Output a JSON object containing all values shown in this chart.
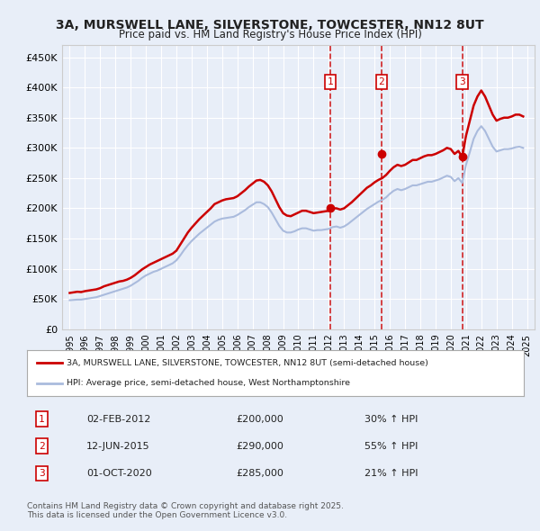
{
  "title_line1": "3A, MURSWELL LANE, SILVERSTONE, TOWCESTER, NN12 8UT",
  "title_line2": "Price paid vs. HM Land Registry's House Price Index (HPI)",
  "bg_color": "#e8eef8",
  "plot_bg_color": "#e8eef8",
  "grid_color": "#ffffff",
  "red_line_color": "#cc0000",
  "blue_line_color": "#aabbdd",
  "dashed_line_color": "#cc0000",
  "legend_box_color": "#ffffff",
  "ylim_min": 0,
  "ylim_max": 470000,
  "yticks": [
    0,
    50000,
    100000,
    150000,
    200000,
    250000,
    300000,
    350000,
    400000,
    450000
  ],
  "ytick_labels": [
    "£0",
    "£50K",
    "£100K",
    "£150K",
    "£200K",
    "£250K",
    "£300K",
    "£350K",
    "£400K",
    "£450K"
  ],
  "xlim_min": 1994.5,
  "xlim_max": 2025.5,
  "xticks": [
    1995,
    1996,
    1997,
    1998,
    1999,
    2000,
    2001,
    2002,
    2003,
    2004,
    2005,
    2006,
    2007,
    2008,
    2009,
    2010,
    2011,
    2012,
    2013,
    2014,
    2015,
    2016,
    2017,
    2018,
    2019,
    2020,
    2021,
    2022,
    2023,
    2024,
    2025
  ],
  "sale_dates": [
    2012.09,
    2015.45,
    2020.75
  ],
  "sale_prices": [
    200000,
    290000,
    285000
  ],
  "sale_labels": [
    "1",
    "2",
    "3"
  ],
  "sale_label_info": [
    {
      "num": "1",
      "date": "02-FEB-2012",
      "price": "£200,000",
      "hpi": "30% ↑ HPI"
    },
    {
      "num": "2",
      "date": "12-JUN-2015",
      "price": "£290,000",
      "hpi": "55% ↑ HPI"
    },
    {
      "num": "3",
      "date": "01-OCT-2020",
      "price": "£285,000",
      "hpi": "21% ↑ HPI"
    }
  ],
  "legend_line1": "3A, MURSWELL LANE, SILVERSTONE, TOWCESTER, NN12 8UT (semi-detached house)",
  "legend_line2": "HPI: Average price, semi-detached house, West Northamptonshire",
  "footnote": "Contains HM Land Registry data © Crown copyright and database right 2025.\nThis data is licensed under the Open Government Licence v3.0.",
  "red_hpi_data": {
    "years": [
      1995.0,
      1995.25,
      1995.5,
      1995.75,
      1996.0,
      1996.25,
      1996.5,
      1996.75,
      1997.0,
      1997.25,
      1997.5,
      1997.75,
      1998.0,
      1998.25,
      1998.5,
      1998.75,
      1999.0,
      1999.25,
      1999.5,
      1999.75,
      2000.0,
      2000.25,
      2000.5,
      2000.75,
      2001.0,
      2001.25,
      2001.5,
      2001.75,
      2002.0,
      2002.25,
      2002.5,
      2002.75,
      2003.0,
      2003.25,
      2003.5,
      2003.75,
      2004.0,
      2004.25,
      2004.5,
      2004.75,
      2005.0,
      2005.25,
      2005.5,
      2005.75,
      2006.0,
      2006.25,
      2006.5,
      2006.75,
      2007.0,
      2007.25,
      2007.5,
      2007.75,
      2008.0,
      2008.25,
      2008.5,
      2008.75,
      2009.0,
      2009.25,
      2009.5,
      2009.75,
      2010.0,
      2010.25,
      2010.5,
      2010.75,
      2011.0,
      2011.25,
      2011.5,
      2011.75,
      2012.0,
      2012.25,
      2012.5,
      2012.75,
      2013.0,
      2013.25,
      2013.5,
      2013.75,
      2014.0,
      2014.25,
      2014.5,
      2014.75,
      2015.0,
      2015.25,
      2015.5,
      2015.75,
      2016.0,
      2016.25,
      2016.5,
      2016.75,
      2017.0,
      2017.25,
      2017.5,
      2017.75,
      2018.0,
      2018.25,
      2018.5,
      2018.75,
      2019.0,
      2019.25,
      2019.5,
      2019.75,
      2020.0,
      2020.25,
      2020.5,
      2020.75,
      2021.0,
      2021.25,
      2021.5,
      2021.75,
      2022.0,
      2022.25,
      2022.5,
      2022.75,
      2023.0,
      2023.25,
      2023.5,
      2023.75,
      2024.0,
      2024.25,
      2024.5,
      2024.75
    ],
    "values": [
      60000,
      61000,
      62000,
      61500,
      63000,
      64000,
      65000,
      66000,
      68000,
      71000,
      73000,
      75000,
      77000,
      79000,
      80000,
      82000,
      85000,
      89000,
      94000,
      99000,
      103000,
      107000,
      110000,
      113000,
      116000,
      119000,
      122000,
      125000,
      130000,
      140000,
      150000,
      160000,
      168000,
      175000,
      182000,
      188000,
      194000,
      200000,
      207000,
      210000,
      213000,
      215000,
      216000,
      217000,
      220000,
      225000,
      230000,
      236000,
      241000,
      246000,
      247000,
      244000,
      238000,
      228000,
      215000,
      202000,
      192000,
      188000,
      187000,
      190000,
      193000,
      196000,
      196000,
      194000,
      192000,
      193000,
      194000,
      195000,
      196000,
      200000,
      200000,
      198000,
      200000,
      205000,
      210000,
      216000,
      222000,
      228000,
      234000,
      238000,
      243000,
      247000,
      250000,
      255000,
      262000,
      268000,
      272000,
      270000,
      272000,
      276000,
      280000,
      280000,
      283000,
      286000,
      288000,
      288000,
      290000,
      293000,
      296000,
      300000,
      298000,
      290000,
      295000,
      285000,
      320000,
      345000,
      370000,
      385000,
      395000,
      385000,
      370000,
      355000,
      345000,
      348000,
      350000,
      350000,
      352000,
      355000,
      355000,
      352000
    ]
  },
  "blue_hpi_data": {
    "years": [
      1995.0,
      1995.25,
      1995.5,
      1995.75,
      1996.0,
      1996.25,
      1996.5,
      1996.75,
      1997.0,
      1997.25,
      1997.5,
      1997.75,
      1998.0,
      1998.25,
      1998.5,
      1998.75,
      1999.0,
      1999.25,
      1999.5,
      1999.75,
      2000.0,
      2000.25,
      2000.5,
      2000.75,
      2001.0,
      2001.25,
      2001.5,
      2001.75,
      2002.0,
      2002.25,
      2002.5,
      2002.75,
      2003.0,
      2003.25,
      2003.5,
      2003.75,
      2004.0,
      2004.25,
      2004.5,
      2004.75,
      2005.0,
      2005.25,
      2005.5,
      2005.75,
      2006.0,
      2006.25,
      2006.5,
      2006.75,
      2007.0,
      2007.25,
      2007.5,
      2007.75,
      2008.0,
      2008.25,
      2008.5,
      2008.75,
      2009.0,
      2009.25,
      2009.5,
      2009.75,
      2010.0,
      2010.25,
      2010.5,
      2010.75,
      2011.0,
      2011.25,
      2011.5,
      2011.75,
      2012.0,
      2012.25,
      2012.5,
      2012.75,
      2013.0,
      2013.25,
      2013.5,
      2013.75,
      2014.0,
      2014.25,
      2014.5,
      2014.75,
      2015.0,
      2015.25,
      2015.5,
      2015.75,
      2016.0,
      2016.25,
      2016.5,
      2016.75,
      2017.0,
      2017.25,
      2017.5,
      2017.75,
      2018.0,
      2018.25,
      2018.5,
      2018.75,
      2019.0,
      2019.25,
      2019.5,
      2019.75,
      2020.0,
      2020.25,
      2020.5,
      2020.75,
      2021.0,
      2021.25,
      2021.5,
      2021.75,
      2022.0,
      2022.25,
      2022.5,
      2022.75,
      2023.0,
      2023.25,
      2023.5,
      2023.75,
      2024.0,
      2024.25,
      2024.5,
      2024.75
    ],
    "values": [
      48000,
      48500,
      49000,
      49000,
      50000,
      51000,
      52000,
      53000,
      55000,
      57000,
      59000,
      61000,
      63000,
      65000,
      67000,
      69000,
      72000,
      76000,
      80000,
      85000,
      89000,
      92000,
      95000,
      97000,
      100000,
      103000,
      106000,
      109000,
      114000,
      122000,
      131000,
      139000,
      146000,
      152000,
      158000,
      163000,
      168000,
      173000,
      178000,
      181000,
      183000,
      184000,
      185000,
      186000,
      189000,
      193000,
      197000,
      202000,
      206000,
      210000,
      210000,
      207000,
      202000,
      193000,
      182000,
      171000,
      163000,
      160000,
      160000,
      162000,
      165000,
      167000,
      167000,
      165000,
      163000,
      164000,
      164000,
      165000,
      166000,
      169000,
      170000,
      168000,
      170000,
      174000,
      179000,
      184000,
      189000,
      194000,
      199000,
      203000,
      207000,
      211000,
      214000,
      218000,
      224000,
      229000,
      232000,
      230000,
      232000,
      235000,
      238000,
      238000,
      240000,
      242000,
      244000,
      244000,
      246000,
      248000,
      251000,
      254000,
      252000,
      245000,
      250000,
      242000,
      272000,
      293000,
      315000,
      328000,
      336000,
      328000,
      315000,
      302000,
      294000,
      296000,
      298000,
      298000,
      299000,
      301000,
      302000,
      300000
    ]
  }
}
